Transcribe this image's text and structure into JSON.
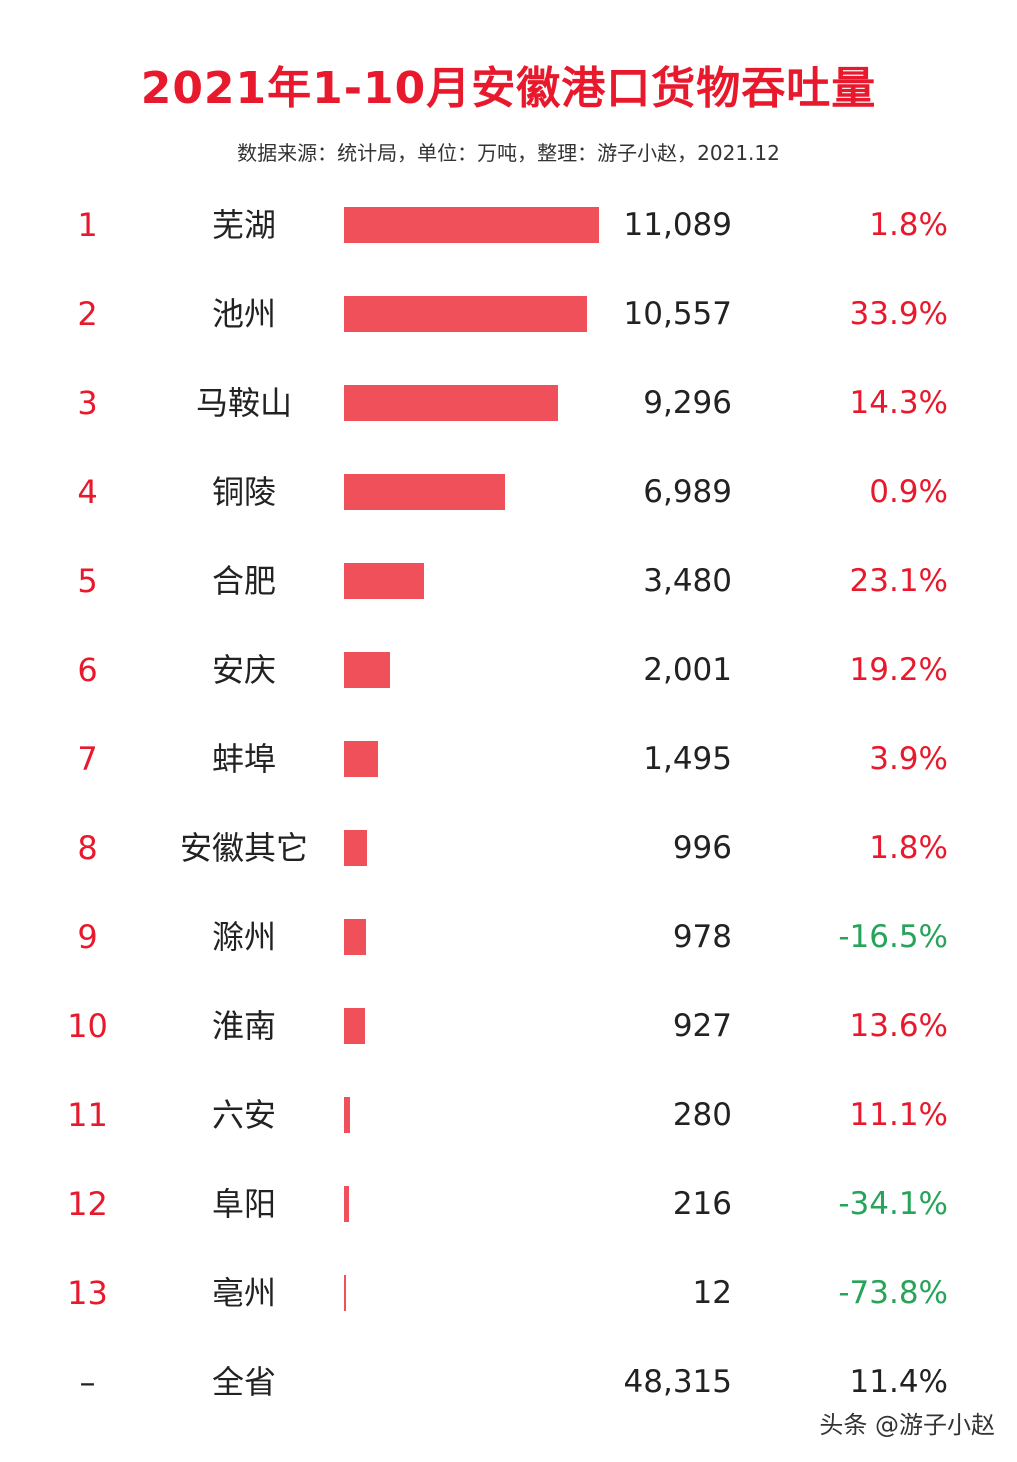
{
  "title": "2021年1-10月安徽港口货物吞吐量",
  "subtitle": "数据来源：统计局，单位：万吨，整理：游子小赵，2021.12",
  "watermark": "头条 @游子小赵",
  "colors": {
    "title": "#e8192c",
    "bar": "#f0505a",
    "positive": "#e8192c",
    "negative": "#27a35a",
    "total": "#222222"
  },
  "chart_data": {
    "type": "bar",
    "orientation": "horizontal",
    "unit": "万吨",
    "rows": [
      {
        "rank": "1",
        "city": "芜湖",
        "value": 11089,
        "value_label": "11,089",
        "growth": "1.8%",
        "growth_sign": "pos"
      },
      {
        "rank": "2",
        "city": "池州",
        "value": 10557,
        "value_label": "10,557",
        "growth": "33.9%",
        "growth_sign": "pos"
      },
      {
        "rank": "3",
        "city": "马鞍山",
        "value": 9296,
        "value_label": "9,296",
        "growth": "14.3%",
        "growth_sign": "pos"
      },
      {
        "rank": "4",
        "city": "铜陵",
        "value": 6989,
        "value_label": "6,989",
        "growth": "0.9%",
        "growth_sign": "pos"
      },
      {
        "rank": "5",
        "city": "合肥",
        "value": 3480,
        "value_label": "3,480",
        "growth": "23.1%",
        "growth_sign": "pos"
      },
      {
        "rank": "6",
        "city": "安庆",
        "value": 2001,
        "value_label": "2,001",
        "growth": "19.2%",
        "growth_sign": "pos"
      },
      {
        "rank": "7",
        "city": "蚌埠",
        "value": 1495,
        "value_label": "1,495",
        "growth": "3.9%",
        "growth_sign": "pos"
      },
      {
        "rank": "8",
        "city": "安徽其它",
        "value": 996,
        "value_label": "996",
        "growth": "1.8%",
        "growth_sign": "pos"
      },
      {
        "rank": "9",
        "city": "滁州",
        "value": 978,
        "value_label": "978",
        "growth": "-16.5%",
        "growth_sign": "neg"
      },
      {
        "rank": "10",
        "city": "淮南",
        "value": 927,
        "value_label": "927",
        "growth": "13.6%",
        "growth_sign": "pos"
      },
      {
        "rank": "11",
        "city": "六安",
        "value": 280,
        "value_label": "280",
        "growth": "11.1%",
        "growth_sign": "pos"
      },
      {
        "rank": "12",
        "city": "阜阳",
        "value": 216,
        "value_label": "216",
        "growth": "-34.1%",
        "growth_sign": "neg"
      },
      {
        "rank": "13",
        "city": "亳州",
        "value": 12,
        "value_label": "12",
        "growth": "-73.8%",
        "growth_sign": "neg"
      }
    ],
    "total": {
      "rank": "–",
      "city": "全省",
      "value": 48315,
      "value_label": "48,315",
      "growth": "11.4%"
    }
  }
}
